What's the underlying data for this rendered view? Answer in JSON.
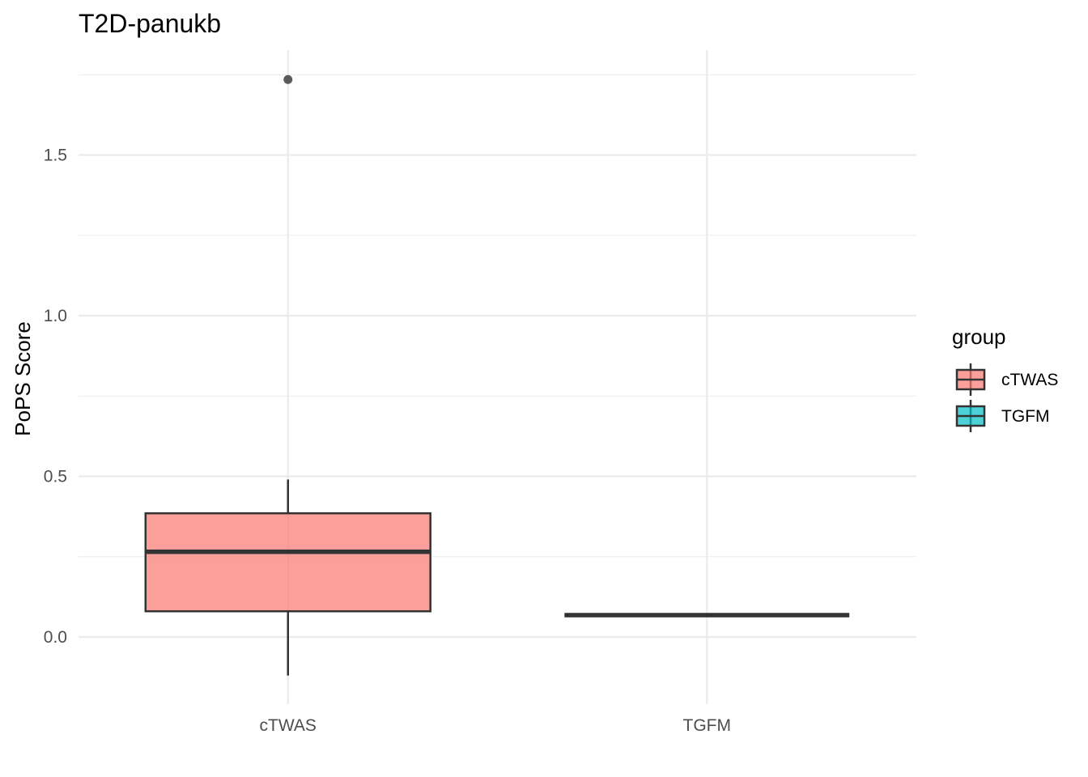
{
  "chart_data": {
    "type": "box",
    "title": "T2D-panukb",
    "xlabel": "",
    "ylabel": "PoPS Score",
    "categories": [
      "cTWAS",
      "TGFM"
    ],
    "ylim": [
      -0.2,
      1.82
    ],
    "yticks": [
      0.0,
      0.5,
      1.0,
      1.5
    ],
    "ytick_labels": [
      "0.0",
      "0.5",
      "1.0",
      "1.5"
    ],
    "grid": true,
    "legend": {
      "title": "group",
      "position": "right",
      "entries": [
        "cTWAS",
        "TGFM"
      ]
    },
    "colors": {
      "cTWAS": "#f8766d",
      "TGFM": "#00bfc4",
      "box_outline": "#333333",
      "grid": "#ebebeb"
    },
    "boxes": [
      {
        "group": "cTWAS",
        "whisker_low": -0.12,
        "q1": 0.08,
        "median": 0.265,
        "q3": 0.385,
        "whisker_high": 0.49,
        "outliers": [
          1.735
        ]
      },
      {
        "group": "TGFM",
        "whisker_low": 0.068,
        "q1": 0.068,
        "median": 0.068,
        "q3": 0.068,
        "whisker_high": 0.068,
        "outliers": []
      }
    ]
  }
}
